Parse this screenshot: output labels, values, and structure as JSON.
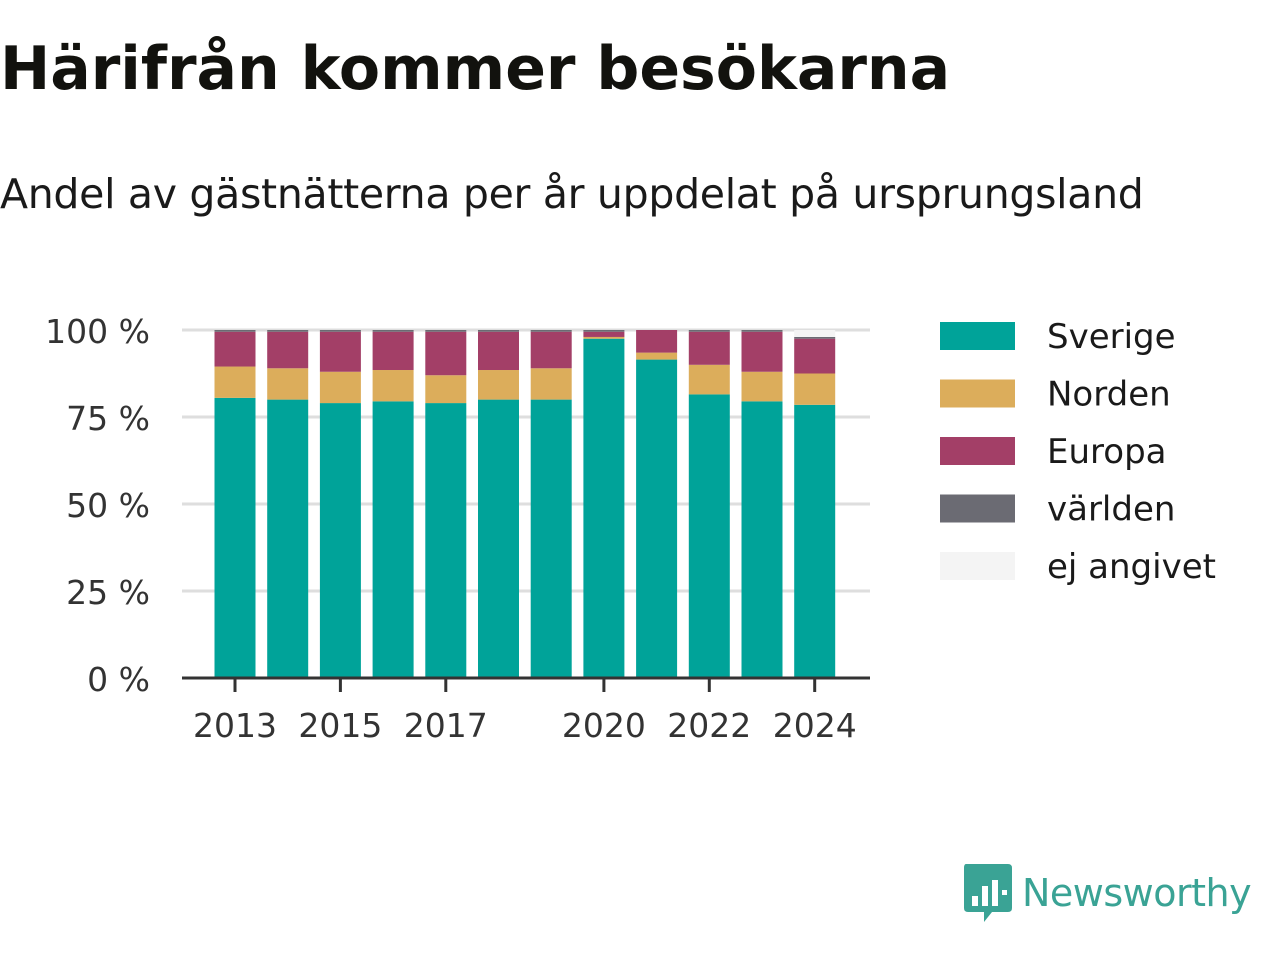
{
  "title": "Härifrån kommer besökarna",
  "subtitle": "Andel av gästnätterna per år uppdelat på ursprungsland",
  "brand": "Newsworthy",
  "colors": {
    "Sverige": "#00a399",
    "Norden": "#dcad5b",
    "Europa": "#a33f67",
    "världen": "#6b6b73",
    "ej angivet": "#f4f4f4",
    "grid": "#dedede",
    "axis": "#333333",
    "brand": "#3aa395"
  },
  "chart_data": {
    "type": "bar",
    "stacked": true,
    "categories": [
      "2013",
      "2014",
      "2015",
      "2016",
      "2017",
      "2018",
      "2019",
      "2020",
      "2021",
      "2022",
      "2023",
      "2024"
    ],
    "x_tick_labels": [
      "2013",
      "2015",
      "2017",
      "2020",
      "2022",
      "2024"
    ],
    "y_tick_labels": [
      "0 %",
      "25 %",
      "50 %",
      "75 %",
      "100 %"
    ],
    "y_ticks": [
      0,
      25,
      50,
      75,
      100
    ],
    "ylim": [
      0,
      100
    ],
    "grid": true,
    "legend_position": "right",
    "series": [
      {
        "name": "Sverige",
        "values": [
          80.5,
          80,
          79,
          79.5,
          79,
          80,
          80,
          97.5,
          91.5,
          81.5,
          79.5,
          78.5
        ]
      },
      {
        "name": "Norden",
        "values": [
          9,
          9,
          9,
          9,
          8,
          8.5,
          9,
          0.5,
          2,
          8.5,
          8.5,
          9
        ]
      },
      {
        "name": "Europa",
        "values": [
          10,
          10.5,
          11.5,
          11,
          12.5,
          11,
          10.5,
          1.5,
          6.5,
          9.5,
          11.5,
          10
        ]
      },
      {
        "name": "världen",
        "values": [
          0.5,
          0.5,
          0.5,
          0.5,
          0.5,
          0.5,
          0.5,
          0.5,
          0,
          0.5,
          0.5,
          0.5
        ]
      },
      {
        "name": "ej angivet",
        "values": [
          0,
          0,
          0,
          0,
          0,
          0,
          0,
          0,
          0,
          0,
          0,
          2
        ]
      }
    ]
  }
}
